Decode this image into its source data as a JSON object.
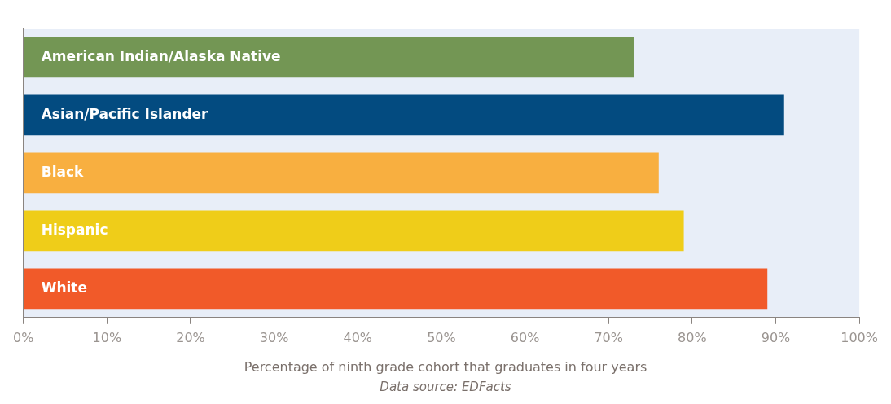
{
  "chart_data": {
    "type": "bar",
    "orientation": "horizontal",
    "categories": [
      "American Indian/Alaska Native",
      "Asian/Pacific Islander",
      "Black",
      "Hispanic",
      "White"
    ],
    "values": [
      73,
      91,
      76,
      79,
      89
    ],
    "colors": [
      "#739654",
      "#034b80",
      "#f8af40",
      "#efcd19",
      "#f15a29"
    ],
    "xlim": [
      0,
      100
    ],
    "xticks": [
      {
        "value": 0,
        "label": "0%"
      },
      {
        "value": 10,
        "label": "10%"
      },
      {
        "value": 20,
        "label": "20%"
      },
      {
        "value": 30,
        "label": "30%"
      },
      {
        "value": 40,
        "label": "40%"
      },
      {
        "value": 50,
        "label": "50%"
      },
      {
        "value": 60,
        "label": "60%"
      },
      {
        "value": 70,
        "label": "70%"
      },
      {
        "value": 80,
        "label": "80%"
      },
      {
        "value": 90,
        "label": "90%"
      },
      {
        "value": 100,
        "label": "100%"
      }
    ],
    "xlabel": "Percentage of ninth grade cohort that graduates in four years",
    "annotations": [
      "Data source: EDFacts"
    ],
    "grid": false,
    "legend": false
  }
}
